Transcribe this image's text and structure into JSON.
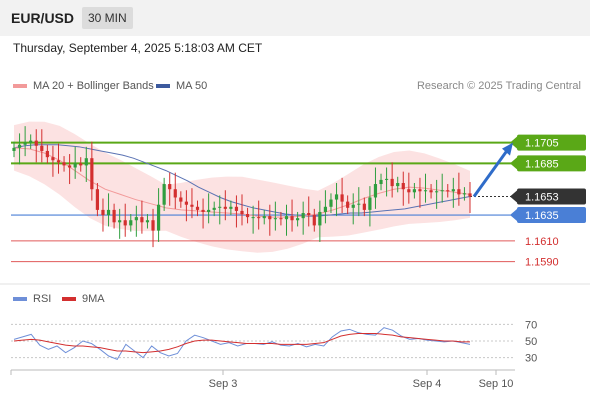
{
  "header": {
    "symbol": "EUR/USD",
    "timeframe": "30 MIN",
    "datetime": "Thursday, September 4, 2025 5:18:03 AM CET"
  },
  "legend": {
    "ma20_bb": "MA 20 + Bollinger Bands",
    "ma50": "MA 50",
    "credit": "Research © 2025 Trading Central"
  },
  "rsi_legend": {
    "rsi": "RSI",
    "ma9": "9MA"
  },
  "colors": {
    "up_candle": "#2f9e3f",
    "down_candle": "#d32f2f",
    "resistance": "#5aa817",
    "pivot": "#4a7fd6",
    "support": "#e05a5a",
    "current": "#333333",
    "ma20": "#f29a9a",
    "ma50": "#5a72b3",
    "bollinger": "#fbd8d8",
    "arrow": "#2f6cc9",
    "rsi": "#6e8fd8",
    "rsi_ma": "#d32f2f"
  },
  "chart_data": {
    "type": "candlestick",
    "instrument": "EUR/USD",
    "timeframe": "30 MIN",
    "x_labels": [
      "Sep 3",
      "Sep 4",
      "Sep 10"
    ],
    "y_range": [
      1.1578,
      1.1725
    ],
    "levels": [
      {
        "label": "1.1705",
        "value": 1.1705,
        "kind": "resistance"
      },
      {
        "label": "1.1685",
        "value": 1.1685,
        "kind": "resistance"
      },
      {
        "label": "1.1653",
        "value": 1.1653,
        "kind": "current"
      },
      {
        "label": "1.1635",
        "value": 1.1635,
        "kind": "pivot"
      },
      {
        "label": "1.1610",
        "value": 1.161,
        "kind": "support"
      },
      {
        "label": "1.1590",
        "value": 1.159,
        "kind": "support"
      }
    ],
    "closes": [
      1.17,
      1.1703,
      1.1705,
      1.1707,
      1.1702,
      1.1697,
      1.1691,
      1.1688,
      1.1686,
      1.1683,
      1.1681,
      1.1685,
      1.1683,
      1.169,
      1.166,
      1.164,
      1.1635,
      1.164,
      1.1628,
      1.163,
      1.1625,
      1.163,
      1.1633,
      1.1628,
      1.163,
      1.162,
      1.1645,
      1.1665,
      1.166,
      1.1652,
      1.1648,
      1.1645,
      1.1643,
      1.164,
      1.1638,
      1.164,
      1.1642,
      1.1643,
      1.1641,
      1.1643,
      1.1639,
      1.1636,
      1.1633,
      1.1633,
      1.1632,
      1.1634,
      1.1631,
      1.1632,
      1.1631,
      1.1634,
      1.163,
      1.1632,
      1.1637,
      1.1635,
      1.1625,
      1.1638,
      1.1643,
      1.165,
      1.1655,
      1.1648,
      1.1642,
      1.1645,
      1.1646,
      1.164,
      1.1652,
      1.1665,
      1.1669,
      1.167,
      1.1663,
      1.1666,
      1.166,
      1.1657,
      1.166,
      1.1658,
      1.1659,
      1.1657,
      1.1658,
      1.1659,
      1.1658,
      1.166,
      1.1655,
      1.1656,
      1.1653
    ],
    "opens": [
      1.1697,
      1.17,
      1.1703,
      1.1705,
      1.1707,
      1.1702,
      1.1697,
      1.1691,
      1.1688,
      1.1686,
      1.1683,
      1.1681,
      1.1685,
      1.1683,
      1.169,
      1.166,
      1.164,
      1.1635,
      1.164,
      1.1628,
      1.163,
      1.1625,
      1.163,
      1.1633,
      1.1628,
      1.163,
      1.162,
      1.1645,
      1.1665,
      1.166,
      1.1652,
      1.1648,
      1.1645,
      1.1643,
      1.164,
      1.1638,
      1.164,
      1.1642,
      1.1643,
      1.1641,
      1.1643,
      1.1639,
      1.1636,
      1.1633,
      1.1633,
      1.1632,
      1.1634,
      1.1631,
      1.1632,
      1.1631,
      1.1634,
      1.163,
      1.1632,
      1.1637,
      1.1635,
      1.1625,
      1.1638,
      1.1643,
      1.165,
      1.1655,
      1.1648,
      1.1642,
      1.1645,
      1.1646,
      1.164,
      1.1652,
      1.1665,
      1.1669,
      1.167,
      1.1663,
      1.1666,
      1.166,
      1.1657,
      1.166,
      1.1658,
      1.1659,
      1.1657,
      1.1658,
      1.1659,
      1.1658,
      1.166,
      1.1655,
      1.1656
    ],
    "ma50": [
      1.17,
      1.1702,
      1.1703,
      1.1703,
      1.1703,
      1.1702,
      1.1701,
      1.1699,
      1.1697,
      1.1695,
      1.1693,
      1.169,
      1.1686,
      1.1682,
      1.1678,
      1.1673,
      1.1668,
      1.1662,
      1.1657,
      1.1652,
      1.1648,
      1.1645,
      1.1642,
      1.164,
      1.1638,
      1.1636,
      1.1635,
      1.1634,
      1.1634,
      1.1635,
      1.1636,
      1.1637,
      1.1637,
      1.1638,
      1.1639,
      1.164,
      1.1641,
      1.1643,
      1.1645,
      1.1647,
      1.1649,
      1.1651,
      1.1653
    ],
    "ma20": [
      1.17,
      1.1699,
      1.1695,
      1.1688,
      1.1678,
      1.1668,
      1.166,
      1.1655,
      1.165,
      1.1646,
      1.1642,
      1.164,
      1.1639,
      1.1638,
      1.1637,
      1.1636,
      1.1634,
      1.1633,
      1.1633,
      1.1634,
      1.1636,
      1.164,
      1.1645,
      1.1651,
      1.1656,
      1.166,
      1.1662,
      1.1661,
      1.1659,
      1.1657,
      1.1655
    ],
    "rsi": {
      "ticks": [
        70,
        50,
        30
      ],
      "range": [
        20,
        80
      ],
      "rsi_values": [
        52,
        55,
        58,
        45,
        40,
        44,
        36,
        42,
        50,
        47,
        40,
        32,
        28,
        46,
        38,
        30,
        44,
        36,
        32,
        35,
        50,
        57,
        54,
        50,
        46,
        48,
        44,
        47,
        47,
        46,
        49,
        45,
        44,
        47,
        43,
        46,
        44,
        55,
        62,
        64,
        60,
        58,
        57,
        66,
        63,
        56,
        52,
        53,
        51,
        50,
        49,
        50,
        48,
        46
      ],
      "ma_values": [
        50,
        51,
        52,
        51,
        49,
        47,
        45,
        44,
        44,
        43,
        42,
        40,
        38,
        38,
        37,
        36,
        37,
        38,
        40,
        43,
        47,
        50,
        51,
        51,
        50,
        49,
        48,
        47,
        47,
        47,
        47,
        46,
        46,
        46,
        46,
        47,
        48,
        52,
        56,
        58,
        59,
        59,
        59,
        58,
        57,
        55,
        54,
        53,
        52,
        51,
        50,
        50,
        49,
        49
      ]
    }
  }
}
